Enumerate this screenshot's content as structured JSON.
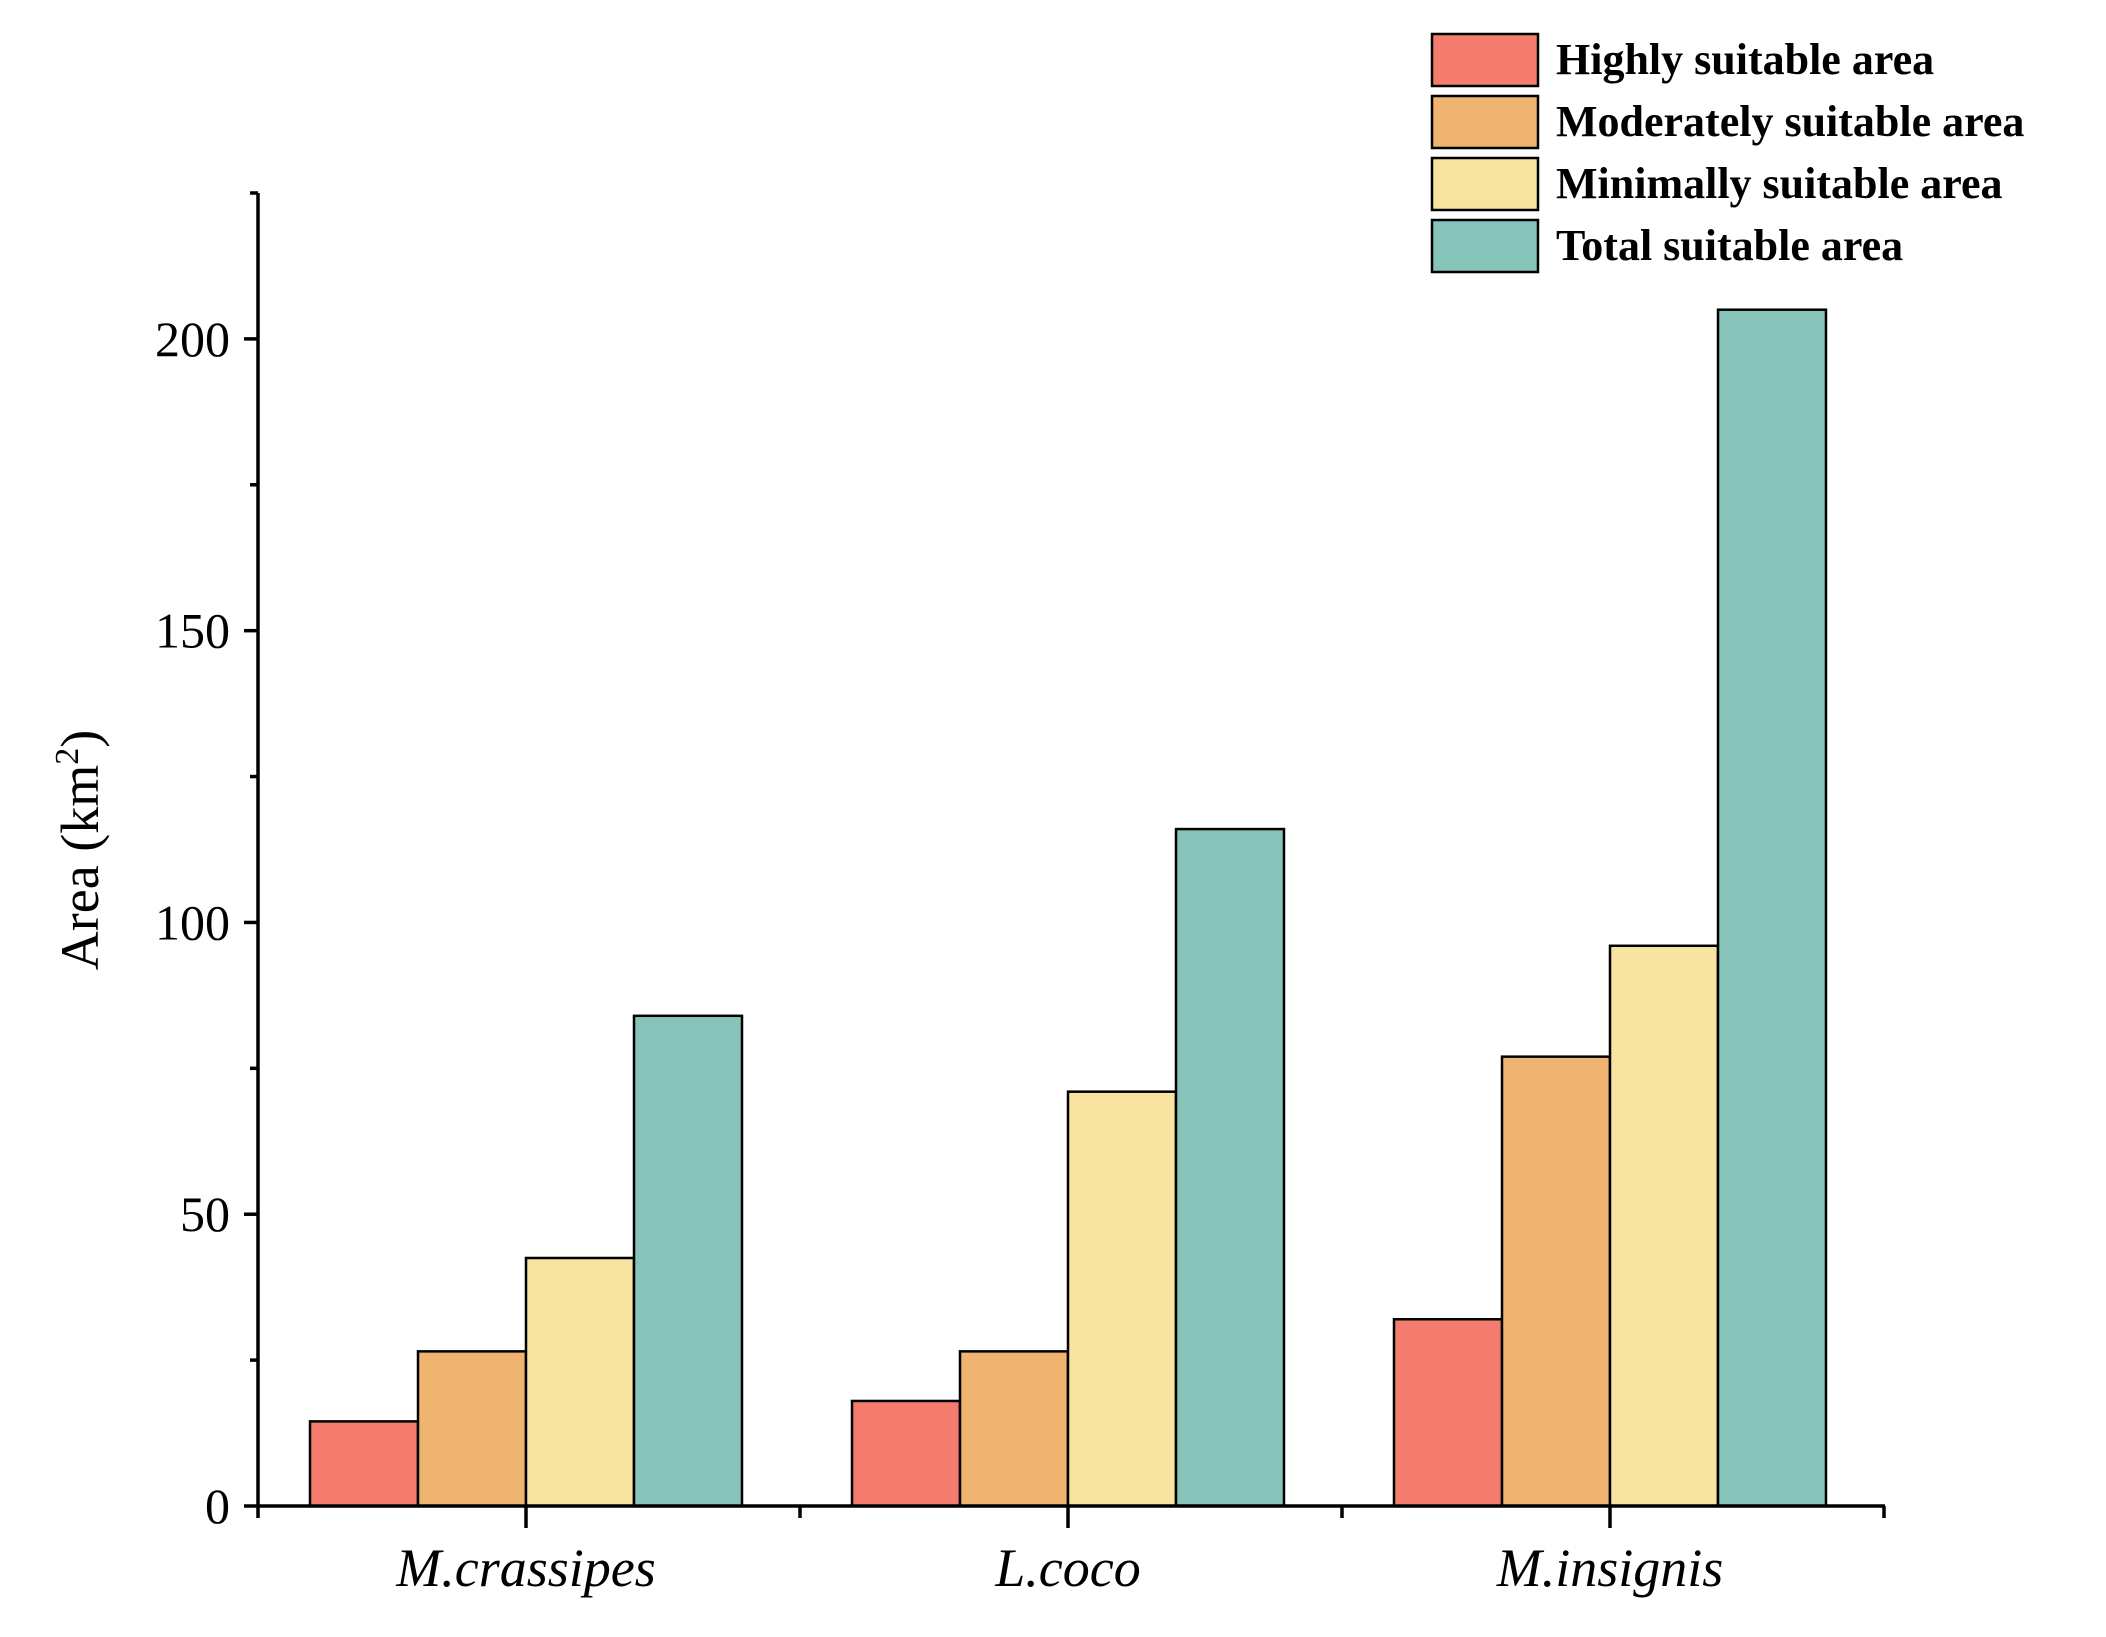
{
  "chart_data": {
    "type": "bar",
    "title": "",
    "xlabel": "",
    "ylabel": "Area (km",
    "ylabel_superscript": "2",
    "ylabel_suffix": ")",
    "ylim": [
      0,
      225
    ],
    "yticks": [
      0,
      50,
      100,
      150,
      200
    ],
    "ytick_labels": [
      "0",
      "50",
      "100",
      "150",
      "200"
    ],
    "categories": [
      "M.crassipes",
      "L.coco",
      "M.insignis"
    ],
    "series": [
      {
        "name": "Highly suitable area",
        "color": "#F47C6E",
        "values": [
          14.5,
          18,
          32
        ]
      },
      {
        "name": "Moderately suitable area",
        "color": "#EFB46F",
        "values": [
          26.5,
          26.5,
          77
        ]
      },
      {
        "name": "Minimally suitable area",
        "color": "#F8E4A0",
        "values": [
          42.5,
          71,
          96
        ]
      },
      {
        "name": "Total suitable area",
        "color": "#86C3B8",
        "values": [
          84,
          116,
          205
        ]
      }
    ],
    "legend_position": "top-right",
    "grid": false
  }
}
